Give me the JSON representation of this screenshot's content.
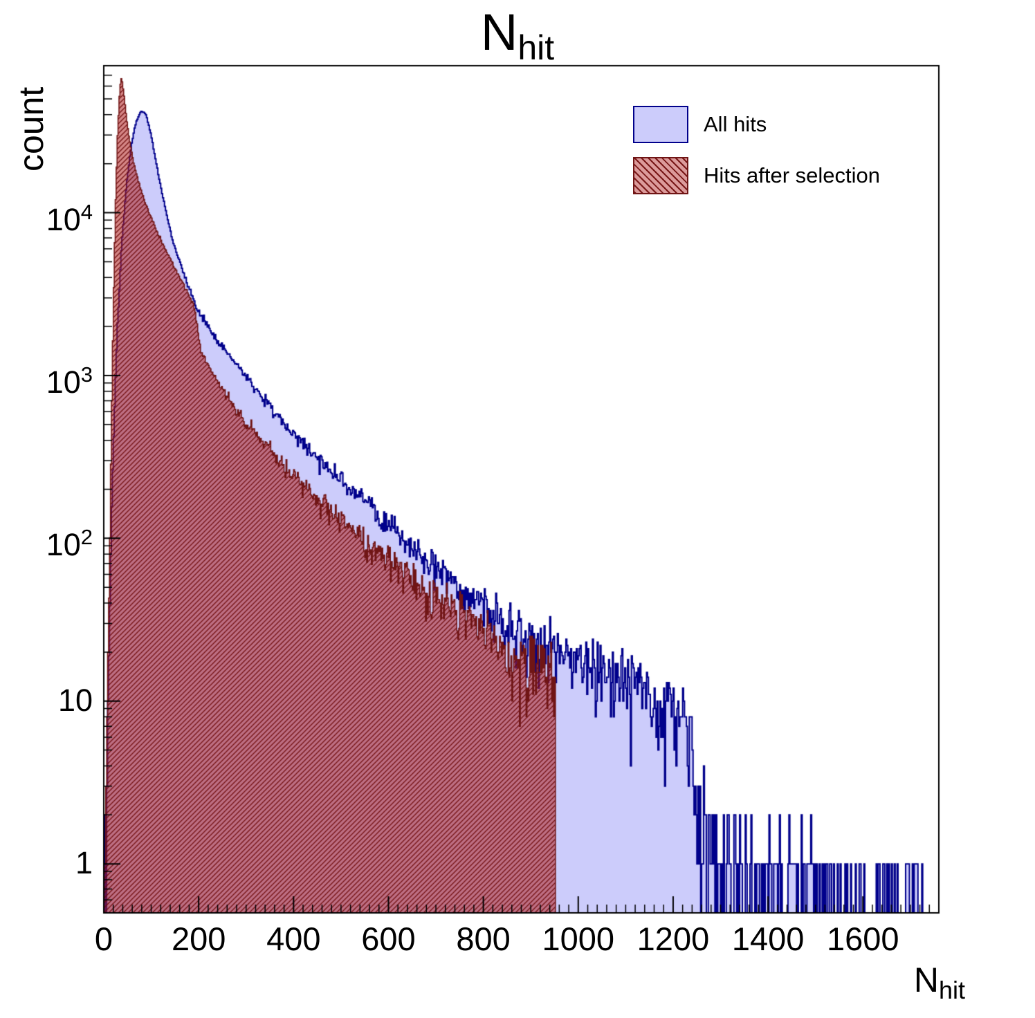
{
  "title": {
    "main": "N",
    "sub": "hit"
  },
  "y_axis": {
    "label": "count",
    "scale": "log",
    "min": 0.5,
    "max": 80000,
    "tick_labels": [
      {
        "value": 1,
        "base": "1",
        "exp": ""
      },
      {
        "value": 10,
        "base": "10",
        "exp": ""
      },
      {
        "value": 100,
        "base": "10",
        "exp": "2"
      },
      {
        "value": 1000,
        "base": "10",
        "exp": "3"
      },
      {
        "value": 10000,
        "base": "10",
        "exp": "4"
      }
    ]
  },
  "x_axis": {
    "label_main": "N",
    "label_sub": "hit",
    "min": 0,
    "max": 1760,
    "ticks": [
      0,
      200,
      400,
      600,
      800,
      1000,
      1200,
      1400,
      1600
    ],
    "minor_step": 20
  },
  "legend": [
    {
      "label": "All hits",
      "swatch": "blue"
    },
    {
      "label": "Hits after selection",
      "swatch": "red-hatch"
    }
  ],
  "colors": {
    "blue_fill": "#ccccfb",
    "blue_line": "#00008b",
    "red_fill": "rgba(178,34,34,0.55)",
    "red_fill_legend": "rgba(178,34,34,0.45)",
    "red_line": "#701515",
    "red_hatch": "rgba(110,10,10,0.9)",
    "axis": "#000000",
    "text": "#000000"
  },
  "chart_data": {
    "type": "histogram",
    "title": "N_hit",
    "xlabel": "N_hit",
    "ylabel": "count",
    "x_range": [
      0,
      1760
    ],
    "y_range": [
      0.5,
      80000
    ],
    "y_scale": "log",
    "bin_width": 2,
    "grid": false,
    "legend_position": "top-right",
    "series": [
      {
        "name": "All hits",
        "style": "blue-filled",
        "peak": {
          "x": 80,
          "count": 42000
        },
        "anchors": [
          [
            0,
            0.2
          ],
          [
            4,
            1
          ],
          [
            8,
            6
          ],
          [
            14,
            60
          ],
          [
            20,
            350
          ],
          [
            28,
            1800
          ],
          [
            38,
            6500
          ],
          [
            48,
            15000
          ],
          [
            58,
            26000
          ],
          [
            68,
            36000
          ],
          [
            78,
            42000
          ],
          [
            88,
            41000
          ],
          [
            100,
            30000
          ],
          [
            117,
            16000
          ],
          [
            130,
            10500
          ],
          [
            146,
            6600
          ],
          [
            160,
            5000
          ],
          [
            180,
            3400
          ],
          [
            200,
            2480
          ],
          [
            225,
            1900
          ],
          [
            250,
            1500
          ],
          [
            275,
            1200
          ],
          [
            300,
            980
          ],
          [
            330,
            760
          ],
          [
            360,
            600
          ],
          [
            390,
            470
          ],
          [
            420,
            385
          ],
          [
            450,
            310
          ],
          [
            480,
            260
          ],
          [
            510,
            215
          ],
          [
            540,
            180
          ],
          [
            570,
            148
          ],
          [
            600,
            118
          ],
          [
            640,
            94
          ],
          [
            680,
            73
          ],
          [
            720,
            58
          ],
          [
            760,
            48
          ],
          [
            800,
            39
          ],
          [
            840,
            32
          ],
          [
            880,
            27
          ],
          [
            920,
            24
          ],
          [
            960,
            21
          ],
          [
            1000,
            19
          ],
          [
            1050,
            16
          ],
          [
            1100,
            13.5
          ],
          [
            1150,
            11.5
          ],
          [
            1200,
            10
          ],
          [
            1225,
            8
          ],
          [
            1240,
            5
          ],
          [
            1252,
            2
          ],
          [
            1270,
            1.0
          ],
          [
            1300,
            0.8
          ],
          [
            1340,
            0.65
          ],
          [
            1380,
            0.55
          ],
          [
            1420,
            0.5
          ],
          [
            1460,
            0.45
          ],
          [
            1500,
            0.4
          ],
          [
            1550,
            0.33
          ],
          [
            1600,
            0.28
          ],
          [
            1650,
            0.22
          ],
          [
            1700,
            0.18
          ],
          [
            1760,
            0.1
          ]
        ]
      },
      {
        "name": "Hits after selection",
        "style": "red-hatched",
        "peak": {
          "x": 36,
          "count": 68000
        },
        "cutoff_x": 951,
        "anchors": [
          [
            0,
            0.2
          ],
          [
            5,
            2
          ],
          [
            10,
            25
          ],
          [
            15,
            300
          ],
          [
            20,
            2500
          ],
          [
            25,
            12000
          ],
          [
            29,
            30000
          ],
          [
            33,
            52000
          ],
          [
            36,
            68000
          ],
          [
            39,
            64000
          ],
          [
            43,
            52000
          ],
          [
            48,
            38000
          ],
          [
            54,
            28000
          ],
          [
            62,
            21000
          ],
          [
            72,
            16000
          ],
          [
            82,
            12800
          ],
          [
            92,
            10600
          ],
          [
            102,
            9000
          ],
          [
            115,
            7400
          ],
          [
            130,
            6000
          ],
          [
            145,
            4900
          ],
          [
            160,
            4000
          ],
          [
            175,
            3300
          ],
          [
            190,
            2700
          ],
          [
            205,
            1400
          ],
          [
            225,
            1080
          ],
          [
            245,
            860
          ],
          [
            265,
            700
          ],
          [
            285,
            580
          ],
          [
            305,
            490
          ],
          [
            330,
            400
          ],
          [
            360,
            320
          ],
          [
            390,
            260
          ],
          [
            420,
            215
          ],
          [
            450,
            175
          ],
          [
            480,
            146
          ],
          [
            510,
            122
          ],
          [
            540,
            102
          ],
          [
            570,
            86
          ],
          [
            600,
            74
          ],
          [
            640,
            60
          ],
          [
            680,
            49
          ],
          [
            720,
            40
          ],
          [
            760,
            33
          ],
          [
            800,
            27
          ],
          [
            840,
            22
          ],
          [
            880,
            18.5
          ],
          [
            910,
            16.5
          ],
          [
            930,
            15
          ],
          [
            945,
            13
          ],
          [
            950,
            12
          ]
        ]
      }
    ]
  }
}
